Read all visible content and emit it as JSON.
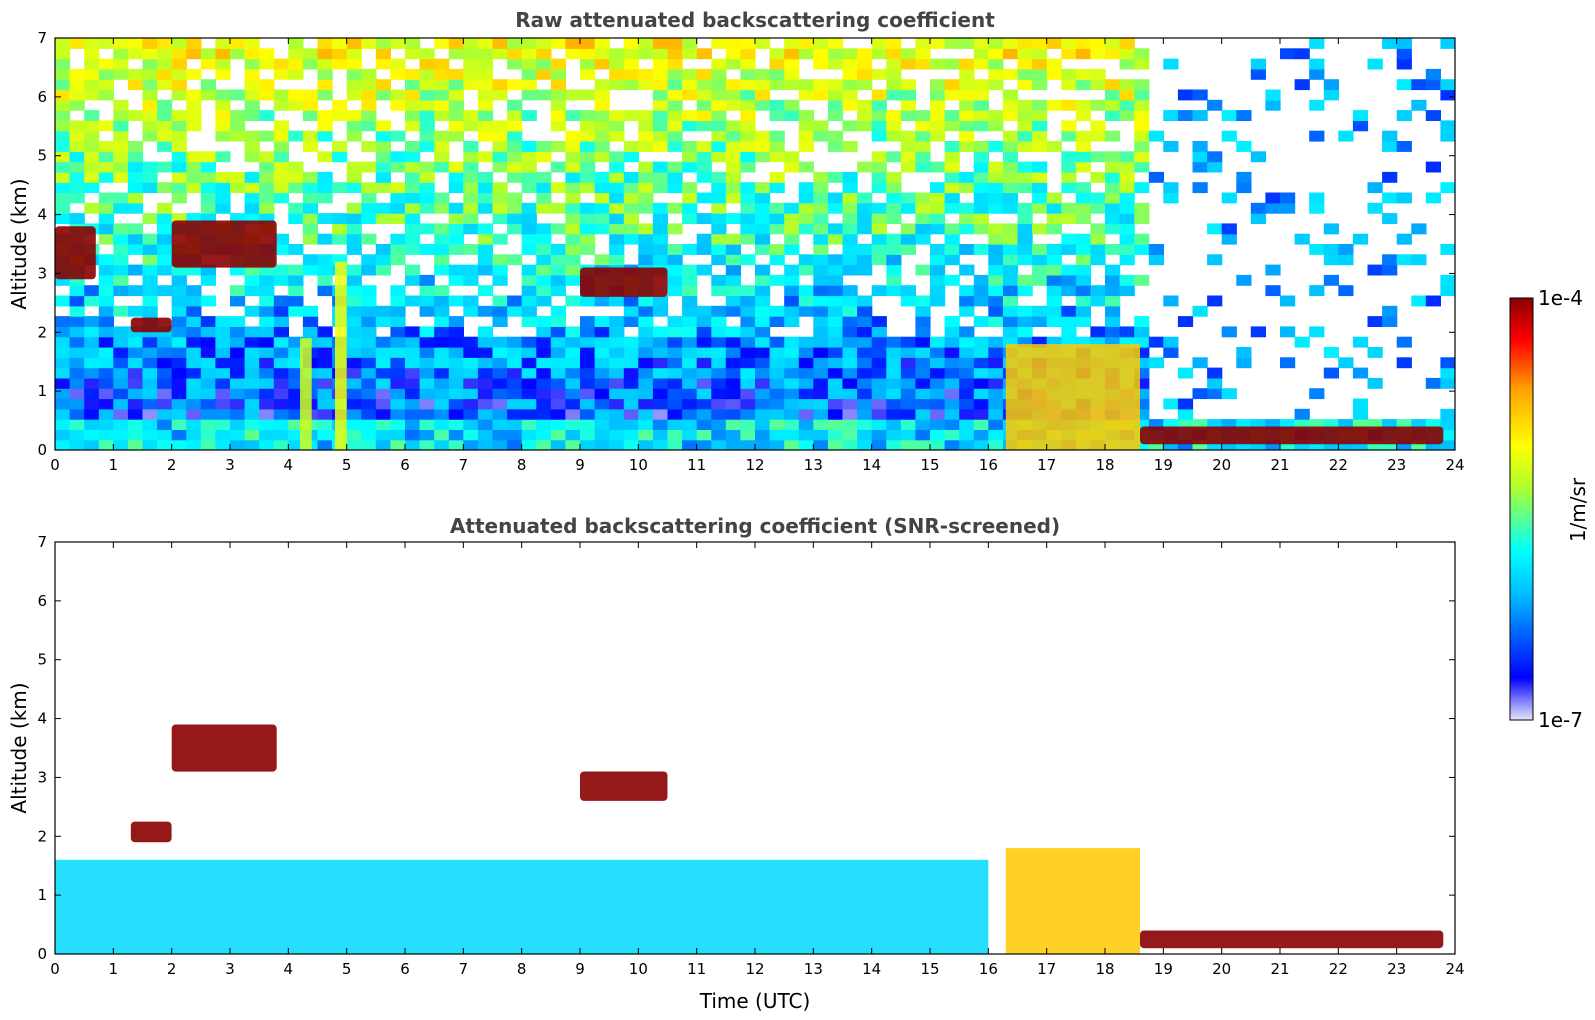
{
  "chart_data": [
    {
      "type": "heatmap",
      "title": "Raw attenuated backscattering coefficient",
      "xlabel": "",
      "ylabel": "Altitude (km)",
      "xlim": [
        0,
        24
      ],
      "ylim": [
        0,
        7
      ],
      "xticks": [
        0,
        1,
        2,
        3,
        4,
        5,
        6,
        7,
        8,
        9,
        10,
        11,
        12,
        13,
        14,
        15,
        16,
        17,
        18,
        19,
        20,
        21,
        22,
        23,
        24
      ],
      "yticks": [
        0,
        1,
        2,
        3,
        4,
        5,
        6,
        7
      ],
      "screened": false,
      "features": [
        {
          "name": "aerosol-layer-east",
          "t": [
            16.3,
            18.6
          ],
          "z": [
            0,
            1.8
          ],
          "level": 0.7
        },
        {
          "name": "cloud-2-0km",
          "t": [
            1.3,
            2.0
          ],
          "z": [
            2.0,
            2.25
          ],
          "level": 1.0
        },
        {
          "name": "cloud-3-7km",
          "t": [
            2.0,
            3.8
          ],
          "z": [
            3.1,
            3.9
          ],
          "level": 1.0
        },
        {
          "name": "cloud-3-2km-early",
          "t": [
            0.0,
            0.7
          ],
          "z": [
            2.9,
            3.8
          ],
          "level": 1.0
        },
        {
          "name": "cloud-2-8km",
          "t": [
            9.0,
            10.5
          ],
          "z": [
            2.6,
            3.1
          ],
          "level": 1.0
        },
        {
          "name": "surface-cloud-late",
          "t": [
            18.6,
            23.8
          ],
          "z": [
            0.1,
            0.4
          ],
          "level": 1.0
        },
        {
          "name": "rain-column-1",
          "t": [
            4.2,
            4.4
          ],
          "z": [
            0,
            1.9
          ],
          "level": 0.55
        },
        {
          "name": "rain-column-2",
          "t": [
            4.8,
            5.0
          ],
          "z": [
            0,
            3.2
          ],
          "level": 0.6
        }
      ]
    },
    {
      "type": "heatmap",
      "title": "Attenuated backscattering coefficient (SNR-screened)",
      "xlabel": "Time (UTC)",
      "ylabel": "Altitude (km)",
      "xlim": [
        0,
        24
      ],
      "ylim": [
        0,
        7
      ],
      "xticks": [
        0,
        1,
        2,
        3,
        4,
        5,
        6,
        7,
        8,
        9,
        10,
        11,
        12,
        13,
        14,
        15,
        16,
        17,
        18,
        19,
        20,
        21,
        22,
        23,
        24
      ],
      "yticks": [
        0,
        1,
        2,
        3,
        4,
        5,
        6,
        7
      ],
      "screened": true,
      "features": [
        {
          "name": "boundary-layer",
          "t": [
            0,
            16.0
          ],
          "z": [
            0,
            1.6
          ],
          "level": 0.3
        },
        {
          "name": "aerosol-layer-east",
          "t": [
            16.3,
            18.6
          ],
          "z": [
            0,
            1.8
          ],
          "level": 0.7
        },
        {
          "name": "cloud-2-0km",
          "t": [
            1.3,
            2.0
          ],
          "z": [
            1.9,
            2.25
          ],
          "level": 1.0
        },
        {
          "name": "cloud-3-7km",
          "t": [
            2.0,
            3.8
          ],
          "z": [
            3.1,
            3.9
          ],
          "level": 1.0
        },
        {
          "name": "cloud-2-8km",
          "t": [
            9.0,
            10.5
          ],
          "z": [
            2.6,
            3.1
          ],
          "level": 1.0
        },
        {
          "name": "surface-cloud-late",
          "t": [
            18.6,
            23.8
          ],
          "z": [
            0.1,
            0.4
          ],
          "level": 1.0
        }
      ]
    }
  ],
  "colorbar": {
    "label": "1/m/sr",
    "max_label": "1e-4",
    "min_label": "1e-7",
    "colors": [
      "#e6e6fa",
      "#0000ff",
      "#00bfff",
      "#00ffff",
      "#adff2f",
      "#ffff00",
      "#ffa500",
      "#ff0000",
      "#8b0000"
    ]
  }
}
